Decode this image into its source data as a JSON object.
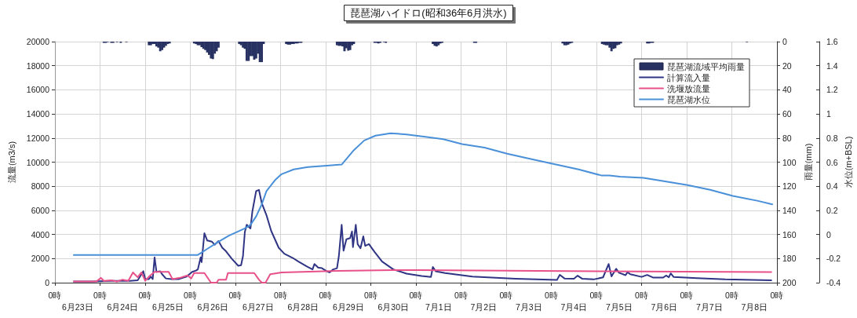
{
  "chart_data": {
    "type": "line",
    "title": "琵琶湖ハイドロ(昭和36年6月洪水)",
    "ylabel": "流量(m3/s)",
    "y2label": "雨量(mm)",
    "y3label": "水位(m+BSL)",
    "annotations": [
      "6月23日",
      "6月24日",
      "6月25日",
      "6月26日",
      "6月27日",
      "6月28日",
      "6月29日",
      "6月30日",
      "7月1日",
      "7月2日",
      "7月3日",
      "7月4日",
      "7月5日",
      "7月6日",
      "7月7日",
      "7月8日"
    ],
    "xlim": [
      "--06-23T00:00",
      "--07-09T00:00"
    ],
    "xticks": [
      {
        "value": "--06-23T00:00",
        "label": "0時"
      },
      {
        "value": "--06-24T00:00",
        "label": "0時"
      },
      {
        "value": "--06-25T00:00",
        "label": "0時"
      },
      {
        "value": "--06-26T00:00",
        "label": "0時"
      },
      {
        "value": "--06-27T00:00",
        "label": "0時"
      },
      {
        "value": "--06-28T00:00",
        "label": "0時"
      },
      {
        "value": "--06-29T00:00",
        "label": "0時"
      },
      {
        "value": "--06-30T00:00",
        "label": "0時"
      },
      {
        "value": "--07-01T00:00",
        "label": "0時"
      },
      {
        "value": "--07-02T00:00",
        "label": "0時"
      },
      {
        "value": "--07-03T00:00",
        "label": "0時"
      },
      {
        "value": "--07-04T00:00",
        "label": "0時"
      },
      {
        "value": "--07-05T00:00",
        "label": "0時"
      },
      {
        "value": "--07-06T00:00",
        "label": "0時"
      },
      {
        "value": "--07-07T00:00",
        "label": "0時"
      },
      {
        "value": "--07-08T00:00",
        "label": "0時"
      },
      {
        "value": "--07-09T00:00",
        "label": "0時"
      }
    ],
    "ylim": [
      0,
      20000
    ],
    "yticks": [
      0,
      2000,
      4000,
      6000,
      8000,
      10000,
      12000,
      14000,
      16000,
      18000,
      20000
    ],
    "y2lim": [
      200,
      0
    ],
    "y2ticks": [
      0,
      20,
      40,
      60,
      80,
      100,
      120,
      140,
      160,
      180,
      200
    ],
    "y3lim": [
      -0.4,
      1.6
    ],
    "y3ticks": [
      -0.4,
      -0.2,
      0,
      0.2,
      0.4,
      0.6,
      0.8,
      1,
      1.2,
      1.4,
      1.6
    ],
    "series": [
      {
        "name": "琵琶湖流域平均雨量",
        "type": "bar",
        "axis": "y2",
        "color": "#283262",
        "x": [
          "--06-24T02:00",
          "--06-24T03:00",
          "--06-24T04:00",
          "--06-24T06:00",
          "--06-24T07:00",
          "--06-24T09:00",
          "--06-24T11:00",
          "--06-24T14:00",
          "--06-25T02:00",
          "--06-25T03:00",
          "--06-25T04:00",
          "--06-25T05:00",
          "--06-25T06:00",
          "--06-25T07:00",
          "--06-25T08:00",
          "--06-25T09:00",
          "--06-25T10:00",
          "--06-25T11:00",
          "--06-25T12:00",
          "--06-25T13:00",
          "--06-26T02:00",
          "--06-26T03:00",
          "--06-26T04:00",
          "--06-26T05:00",
          "--06-26T06:00",
          "--06-26T07:00",
          "--06-26T08:00",
          "--06-26T09:00",
          "--06-26T10:00",
          "--06-26T11:00",
          "--06-26T12:00",
          "--06-26T13:00",
          "--06-26T14:00",
          "--06-26T15:00",
          "--06-27T02:00",
          "--06-27T03:00",
          "--06-27T04:00",
          "--06-27T05:00",
          "--06-27T06:00",
          "--06-27T07:00",
          "--06-27T08:00",
          "--06-27T09:00",
          "--06-27T10:00",
          "--06-27T11:00",
          "--06-27T12:00",
          "--06-27T13:00",
          "--06-27T14:00",
          "--06-27T15:00",
          "--06-28T03:00",
          "--06-28T04:00",
          "--06-28T05:00",
          "--06-28T06:00",
          "--06-28T07:00",
          "--06-28T08:00",
          "--06-28T09:00",
          "--06-28T10:00",
          "--06-28T11:00",
          "--06-29T06:00",
          "--06-29T07:00",
          "--06-29T08:00",
          "--06-29T09:00",
          "--06-29T10:00",
          "--06-29T11:00",
          "--06-29T12:00",
          "--06-29T13:00",
          "--06-29T14:00",
          "--06-29T15:00",
          "--06-30T02:00",
          "--06-30T03:00",
          "--06-30T04:00",
          "--06-30T05:00",
          "--06-30T07:00",
          "--06-30T08:00",
          "--07-01T09:00",
          "--07-01T10:00",
          "--07-01T11:00",
          "--07-01T12:00",
          "--07-01T13:00",
          "--07-01T14:00",
          "--07-02T07:00",
          "--07-02T08:00",
          "--07-04T06:00",
          "--07-04T07:00",
          "--07-04T08:00",
          "--07-04T09:00",
          "--07-04T10:00",
          "--07-04T11:00",
          "--07-05T03:00",
          "--07-05T04:00",
          "--07-05T05:00",
          "--07-05T06:00",
          "--07-05T07:00",
          "--07-05T08:00",
          "--07-05T09:00",
          "--07-05T10:00",
          "--07-05T11:00",
          "--07-05T12:00",
          "--07-05T13:00",
          "--07-06T03:00",
          "--07-06T04:00",
          "--07-06T05:00",
          "--07-06T06:00",
          "--07-08T08:00"
        ],
        "values": [
          1,
          1,
          0.5,
          1,
          1,
          0.5,
          1,
          0.5,
          3,
          3,
          2,
          2,
          4,
          5,
          8,
          7,
          5,
          3.5,
          2,
          1.5,
          1.5,
          2,
          3,
          3,
          4.5,
          6,
          7,
          9,
          11,
          14,
          14.5,
          10,
          8,
          5,
          2,
          3,
          5,
          6,
          16,
          16,
          12,
          12,
          15,
          14,
          10,
          17,
          17,
          2,
          2,
          2.5,
          2.5,
          2,
          2,
          1.5,
          1.5,
          1,
          1,
          3,
          3.5,
          3.5,
          4,
          8,
          5.5,
          7.5,
          7,
          3,
          2,
          1,
          1,
          1.5,
          1,
          0.5,
          1,
          2,
          3.5,
          4,
          3,
          1.5,
          1,
          1,
          1,
          1.5,
          3,
          3,
          2.5,
          1.5,
          1,
          2,
          2.5,
          3,
          3,
          5,
          8,
          6,
          5.5,
          3,
          2.5,
          1.5,
          1.5,
          1.5,
          1,
          1,
          0.5
        ]
      },
      {
        "name": "計算流入量",
        "color": "#2f3584",
        "x": [
          "--06-23T10:00",
          "--06-23T20:00",
          "--06-24T06:00",
          "--06-24T16:00",
          "--06-24T20:00",
          "--06-24T23:00",
          "--06-25T00:00",
          "--06-25T02:00",
          "--06-25T03:00",
          "--06-25T04:00",
          "--06-25T05:00",
          "--06-25T06:00",
          "--06-25T08:00",
          "--06-25T09:00",
          "--06-25T11:00",
          "--06-25T14:00",
          "--06-25T18:00",
          "--06-25T22:00",
          "--06-26T01:00",
          "--06-26T03:00",
          "--06-26T04:00",
          "--06-26T05:30",
          "--06-26T06:00",
          "--06-26T07:30",
          "--06-26T09:00",
          "--06-26T11:30",
          "--06-26T13:00",
          "--06-26T15:00",
          "--06-26T17:00",
          "--06-26T19:00",
          "--06-26T22:00",
          "--06-27T01:30",
          "--06-27T03:00",
          "--06-27T04:00",
          "--06-27T05:00",
          "--06-27T06:00",
          "--06-27T08:00",
          "--06-27T09:00",
          "--06-27T11:00",
          "--06-27T12:30",
          "--06-27T14:00",
          "--06-27T16:30",
          "--06-27T19:00",
          "--06-27T23:00",
          "--06-28T02:00",
          "--06-28T06:30",
          "--06-28T09:30",
          "--06-28T14:00",
          "--06-28T17:00",
          "--06-28T18:00",
          "--06-28T20:00",
          "--06-28T22:00",
          "--06-29T00:30",
          "--06-29T02:00",
          "--06-29T04:00",
          "--06-29T06:00",
          "--06-29T07:00",
          "--06-29T08:30",
          "--06-29T09:30",
          "--06-29T11:00",
          "--06-29T13:00",
          "--06-29T14:00",
          "--06-29T14:30",
          "--06-29T16:00",
          "--06-29T17:00",
          "--06-29T18:30",
          "--06-29T20:00",
          "--06-29T21:00",
          "--06-29T23:00",
          "--06-30T02:00",
          "--06-30T06:00",
          "--06-30T12:00",
          "--06-30T19:00",
          "--07-01T03:00",
          "--07-01T08:00",
          "--07-01T09:00",
          "--07-01T10:30",
          "--07-01T15:30",
          "--07-02T06:00",
          "--07-03T05:00",
          "--07-04T03:00",
          "--07-04T04:30",
          "--07-04T07:00",
          "--07-04T12:00",
          "--07-04T14:00",
          "--07-04T16:30",
          "--07-04T22:30",
          "--07-05T03:30",
          "--07-05T06:30",
          "--07-05T08:00",
          "--07-05T10:30",
          "--07-05T12:00",
          "--07-05T15:30",
          "--07-05T16:30",
          "--07-05T18:00",
          "--07-06T00:00",
          "--07-06T03:00",
          "--07-06T06:00",
          "--07-06T11:30",
          "--07-06T13:00",
          "--07-06T14:30",
          "--07-06T15:30",
          "--07-06T17:00",
          "--07-07T05:30",
          "--07-07T20:30",
          "--07-08T21:00"
        ],
        "values": [
          100,
          100,
          150,
          150,
          200,
          950,
          300,
          300,
          500,
          300,
          2100,
          900,
          950,
          700,
          350,
          300,
          300,
          500,
          900,
          1000,
          1100,
          2100,
          1700,
          4100,
          3500,
          3400,
          3150,
          3450,
          2900,
          2600,
          2000,
          1400,
          1450,
          2200,
          4200,
          4800,
          4500,
          5900,
          7600,
          7700,
          6600,
          5600,
          4300,
          2900,
          2400,
          2050,
          1750,
          1350,
          1100,
          1550,
          1250,
          1200,
          950,
          850,
          1100,
          1200,
          2200,
          4800,
          2650,
          3600,
          3700,
          4250,
          2950,
          4800,
          3200,
          2850,
          3850,
          3050,
          3200,
          2550,
          1750,
          1100,
          750,
          550,
          480,
          1300,
          950,
          800,
          500,
          330,
          220,
          650,
          350,
          320,
          580,
          320,
          270,
          440,
          1550,
          520,
          1150,
          820,
          620,
          870,
          700,
          480,
          640,
          430,
          420,
          590,
          450,
          770,
          480,
          380,
          270,
          190
        ]
      },
      {
        "name": "洗堰放流量",
        "color": "#e8508a",
        "x": [
          "--06-23T10:00",
          "--06-23T22:00",
          "--06-24T00:30",
          "--06-24T02:00",
          "--06-24T06:00",
          "--06-24T09:00",
          "--06-24T12:00",
          "--06-24T15:00",
          "--06-24T17:30",
          "--06-24T20:00",
          "--06-24T22:00",
          "--06-25T00:00",
          "--06-25T02:00",
          "--06-25T05:00",
          "--06-25T12:30",
          "--06-25T14:30",
          "--06-25T18:30",
          "--06-25T22:30",
          "--06-26T00:30",
          "--06-26T02:00",
          "--06-26T07:30",
          "--06-26T11:00",
          "--06-26T14:00",
          "--06-26T15:00",
          "--06-26T19:00",
          "--06-26T20:00",
          "--06-27T10:00",
          "--06-27T12:30",
          "--06-27T14:00",
          "--06-27T16:00",
          "--06-27T18:30",
          "--06-28T00:30",
          "--06-29T06:00",
          "--06-30T12:00",
          "--07-01T01:00",
          "--07-05T01:00",
          "--07-08T21:00"
        ],
        "values": [
          100,
          100,
          400,
          150,
          200,
          100,
          250,
          150,
          850,
          450,
          850,
          150,
          500,
          900,
          900,
          300,
          400,
          600,
          350,
          800,
          800,
          0,
          0,
          250,
          250,
          800,
          800,
          250,
          0,
          0,
          700,
          850,
          980,
          1050,
          1050,
          950,
          880
        ]
      },
      {
        "name": "琵琶湖水位",
        "axis": "y3",
        "color": "#4a90d9",
        "x": [
          "--06-23T10:00",
          "--06-25T13:00",
          "--06-26T04:00",
          "--06-26T09:00",
          "--06-26T15:00",
          "--06-26T20:30",
          "--06-27T05:00",
          "--06-27T08:00",
          "--06-27T11:00",
          "--06-27T14:00",
          "--06-27T16:30",
          "--06-27T21:00",
          "--06-28T00:30",
          "--06-28T07:00",
          "--06-28T14:30",
          "--06-29T00:30",
          "--06-29T08:30",
          "--06-29T15:00",
          "--06-29T20:30",
          "--06-30T02:30",
          "--06-30T10:30",
          "--06-30T19:00",
          "--07-01T05:00",
          "--07-01T14:30",
          "--07-02T00:30",
          "--07-02T12:30",
          "--07-03T00:30",
          "--07-03T15:00",
          "--07-04T02:30",
          "--07-04T14:30",
          "--07-05T02:30",
          "--07-05T07:00",
          "--07-05T12:30",
          "--07-06T01:00",
          "--07-06T12:30",
          "--07-07T00:30",
          "--07-07T12:30",
          "--07-08T00:30",
          "--07-08T13:30",
          "--07-08T21:30"
        ],
        "values": [
          -0.17,
          -0.17,
          -0.17,
          -0.12,
          -0.06,
          -0.01,
          0.05,
          0.08,
          0.15,
          0.25,
          0.36,
          0.45,
          0.5,
          0.54,
          0.56,
          0.57,
          0.58,
          0.7,
          0.78,
          0.82,
          0.84,
          0.83,
          0.81,
          0.79,
          0.75,
          0.72,
          0.67,
          0.62,
          0.58,
          0.54,
          0.49,
          0.49,
          0.48,
          0.47,
          0.44,
          0.41,
          0.37,
          0.32,
          0.28,
          0.25
        ]
      }
    ],
    "grid": true,
    "legend": "top right",
    "marker": "none",
    "line_style": "solid"
  }
}
